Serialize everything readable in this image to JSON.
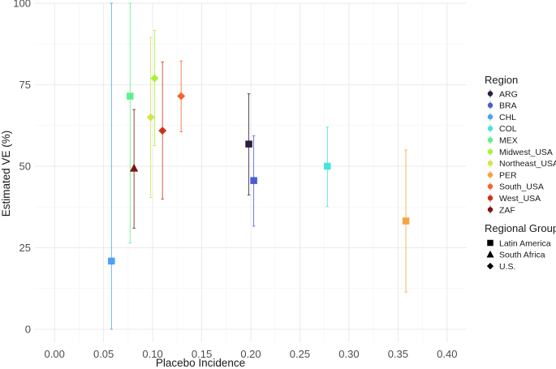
{
  "chart_data": {
    "type": "scatter",
    "xlabel": "Placebo Incidence",
    "ylabel": "Estimated VE (%)",
    "xlim": [
      -0.02,
      0.42
    ],
    "ylim": [
      -4,
      100
    ],
    "x_ticks": [
      "0.00",
      "0.05",
      "0.10",
      "0.15",
      "0.20",
      "0.25",
      "0.30",
      "0.35",
      "0.40"
    ],
    "x_tick_values": [
      0,
      0.05,
      0.1,
      0.15,
      0.2,
      0.25,
      0.3,
      0.35,
      0.4
    ],
    "y_ticks": [
      "0",
      "25",
      "50",
      "75",
      "100"
    ],
    "y_tick_values": [
      0,
      25,
      50,
      75,
      100
    ],
    "grid": true,
    "legend_placement": "right",
    "legend_color": {
      "title": "Region",
      "entries": [
        {
          "label": "ARG",
          "color": "#2d1e3e"
        },
        {
          "label": "BRA",
          "color": "#4a5bd4"
        },
        {
          "label": "CHL",
          "color": "#4ea0f5"
        },
        {
          "label": "COL",
          "color": "#43e5d8"
        },
        {
          "label": "MEX",
          "color": "#5cf08e"
        },
        {
          "label": "Midwest_USA",
          "color": "#a6f23a"
        },
        {
          "label": "Northeast_USA",
          "color": "#d7e34a"
        },
        {
          "label": "PER",
          "color": "#f5a340"
        },
        {
          "label": "South_USA",
          "color": "#f2662a"
        },
        {
          "label": "West_USA",
          "color": "#cc3216"
        },
        {
          "label": "ZAF",
          "color": "#801414"
        }
      ]
    },
    "legend_shape": {
      "title": "Regional Group",
      "entries": [
        {
          "label": "Latin America",
          "shape": "square"
        },
        {
          "label": "South Africa",
          "shape": "triangle"
        },
        {
          "label": "U.S.",
          "shape": "diamond"
        }
      ]
    },
    "points": [
      {
        "region": "ARG",
        "group": "Latin America",
        "x": 0.198,
        "y": 56.8,
        "lo": 41.2,
        "hi": 72.2
      },
      {
        "region": "BRA",
        "group": "Latin America",
        "x": 0.203,
        "y": 45.6,
        "lo": 31.6,
        "hi": 59.3
      },
      {
        "region": "CHL",
        "group": "Latin America",
        "x": 0.058,
        "y": 20.9,
        "lo": 0,
        "hi": 100
      },
      {
        "region": "COL",
        "group": "Latin America",
        "x": 0.278,
        "y": 50.0,
        "lo": 37.6,
        "hi": 62.0
      },
      {
        "region": "MEX",
        "group": "Latin America",
        "x": 0.077,
        "y": 71.5,
        "lo": 26.4,
        "hi": 100
      },
      {
        "region": "Midwest_USA",
        "group": "U.S.",
        "x": 0.102,
        "y": 77.0,
        "lo": 56.3,
        "hi": 91.7
      },
      {
        "region": "Northeast_USA",
        "group": "U.S.",
        "x": 0.098,
        "y": 65.0,
        "lo": 40.4,
        "hi": 89.5
      },
      {
        "region": "PER",
        "group": "Latin America",
        "x": 0.358,
        "y": 33.2,
        "lo": 11.4,
        "hi": 55.0
      },
      {
        "region": "South_USA",
        "group": "U.S.",
        "x": 0.129,
        "y": 71.5,
        "lo": 60.6,
        "hi": 82.3
      },
      {
        "region": "West_USA",
        "group": "U.S.",
        "x": 0.11,
        "y": 60.9,
        "lo": 39.9,
        "hi": 82.0
      },
      {
        "region": "ZAF",
        "group": "South Africa",
        "x": 0.081,
        "y": 49.4,
        "lo": 31.0,
        "hi": 67.4
      }
    ]
  }
}
